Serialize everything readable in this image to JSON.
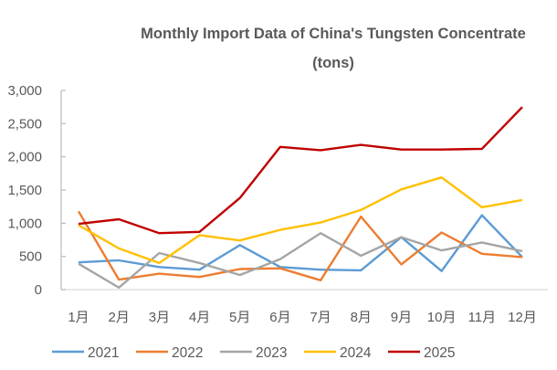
{
  "chart_data": {
    "type": "line",
    "title": "Monthly Import Data of China's Tungsten Concentrate",
    "subtitle": "(tons)",
    "xlabel": "",
    "ylabel": "",
    "categories": [
      "1月",
      "2月",
      "3月",
      "4月",
      "5月",
      "6月",
      "7月",
      "8月",
      "9月",
      "10月",
      "11月",
      "12月"
    ],
    "ylim": [
      0,
      3000
    ],
    "yticks": [
      0,
      500,
      1000,
      1500,
      2000,
      2500,
      3000
    ],
    "ytick_labels": [
      "0",
      "500",
      "1,000",
      "1,500",
      "2,000",
      "2,500",
      "3,000"
    ],
    "grid": false,
    "legend_position": "bottom",
    "series": [
      {
        "name": "2021",
        "color": "#5B9BD5",
        "values": [
          410,
          440,
          340,
          300,
          670,
          340,
          300,
          290,
          790,
          280,
          1120,
          490
        ]
      },
      {
        "name": "2022",
        "color": "#ED7D31",
        "values": [
          1180,
          150,
          240,
          190,
          310,
          320,
          140,
          1100,
          380,
          860,
          540,
          490
        ]
      },
      {
        "name": "2023",
        "color": "#A5A5A5",
        "values": [
          390,
          30,
          550,
          400,
          220,
          460,
          850,
          510,
          790,
          590,
          710,
          580
        ]
      },
      {
        "name": "2024",
        "color": "#FFC000",
        "values": [
          970,
          620,
          400,
          820,
          740,
          900,
          1010,
          1200,
          1510,
          1690,
          1240,
          1350
        ]
      },
      {
        "name": "2025",
        "color": "#C00000",
        "values": [
          990,
          1060,
          850,
          870,
          1380,
          2150,
          2100,
          2180,
          2110,
          2110,
          2120,
          2750
        ]
      }
    ]
  }
}
